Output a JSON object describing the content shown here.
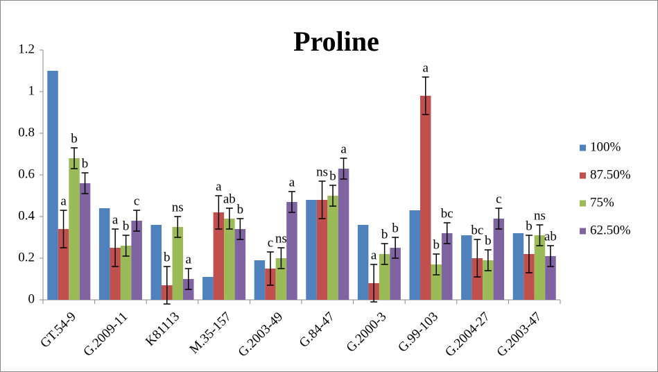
{
  "chart_data": {
    "type": "bar",
    "title": "Proline",
    "categories": [
      "GT.54-9",
      "G.2009-11",
      "K81113",
      "M.35-157",
      "G.2003-49",
      "G.84-47",
      "G.2000-3",
      "G.99-103",
      "G.2004-27",
      "G.2003-47"
    ],
    "series": [
      {
        "name": "100%",
        "color": "#4f81bd",
        "values": [
          1.1,
          0.44,
          0.36,
          0.11,
          0.19,
          0.48,
          0.36,
          0.43,
          0.31,
          0.32
        ]
      },
      {
        "name": "87.50%",
        "color": "#c0504d",
        "values": [
          0.34,
          0.25,
          0.07,
          0.42,
          0.15,
          0.48,
          0.08,
          0.98,
          0.2,
          0.22
        ],
        "errors": [
          0.09,
          0.09,
          0.09,
          0.08,
          0.08,
          0.09,
          0.09,
          0.09,
          0.09,
          0.09
        ],
        "letters": [
          "a",
          "a",
          "b",
          "a",
          "c",
          "ns",
          "a",
          "a",
          "bc",
          "b"
        ]
      },
      {
        "name": "75%",
        "color": "#9bbb59",
        "values": [
          0.68,
          0.26,
          0.35,
          0.39,
          0.2,
          0.5,
          0.22,
          0.17,
          0.19,
          0.31
        ],
        "errors": [
          0.05,
          0.05,
          0.05,
          0.05,
          0.05,
          0.05,
          0.05,
          0.05,
          0.05,
          0.05
        ],
        "letters": [
          "b",
          "b",
          "ns",
          "ab",
          "ns",
          "b",
          "b",
          "b",
          "b",
          "ns"
        ]
      },
      {
        "name": "62.50%",
        "color": "#8064a2",
        "values": [
          0.56,
          0.38,
          0.1,
          0.34,
          0.47,
          0.63,
          0.25,
          0.32,
          0.39,
          0.21
        ],
        "errors": [
          0.05,
          0.05,
          0.05,
          0.05,
          0.05,
          0.05,
          0.05,
          0.05,
          0.05,
          0.05
        ],
        "letters": [
          "b",
          "c",
          "a",
          "b",
          "a",
          "a",
          "b",
          "bc",
          "c",
          "ab"
        ]
      }
    ],
    "ylim": [
      0,
      1.2
    ],
    "yticks": [
      0,
      0.2,
      0.4,
      0.6,
      0.8,
      1,
      1.2
    ],
    "grid": false,
    "legend": "right"
  }
}
